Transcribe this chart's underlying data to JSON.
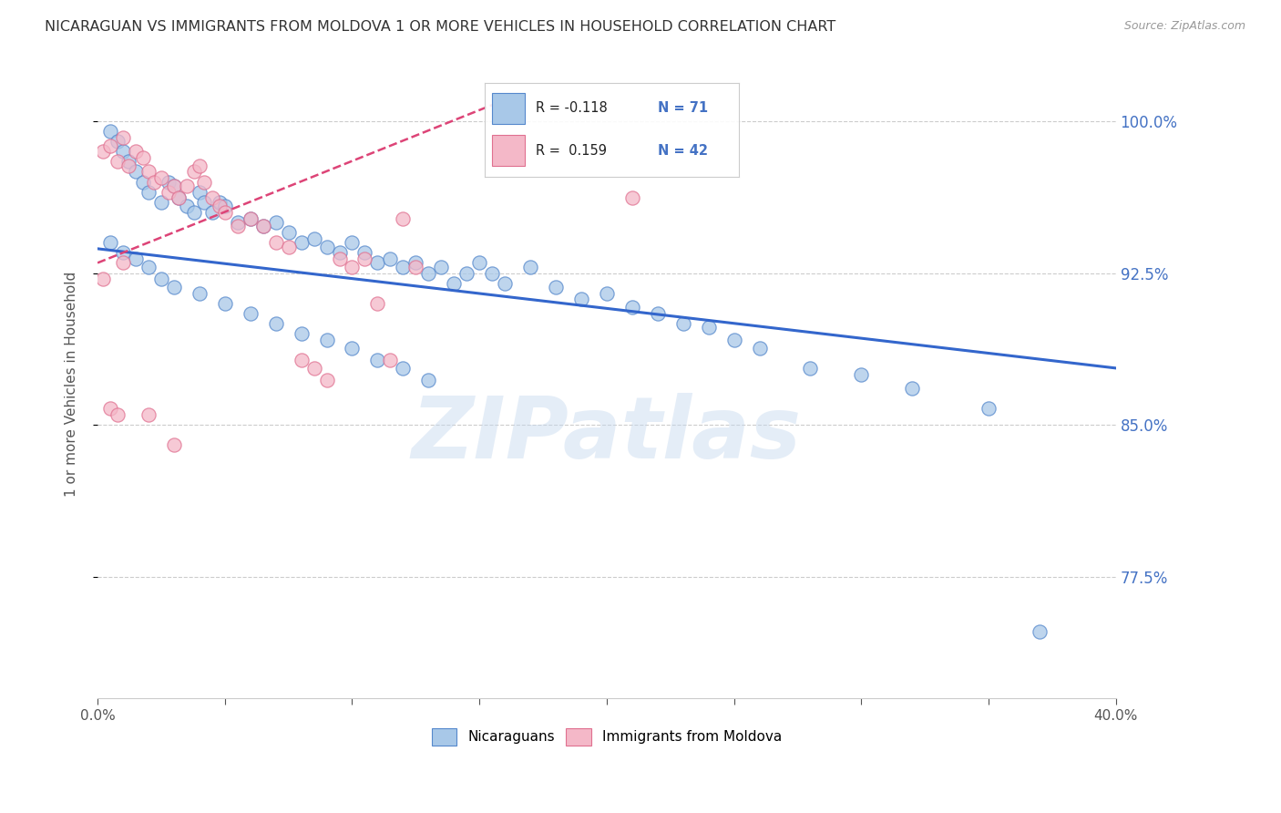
{
  "title": "NICARAGUAN VS IMMIGRANTS FROM MOLDOVA 1 OR MORE VEHICLES IN HOUSEHOLD CORRELATION CHART",
  "source": "Source: ZipAtlas.com",
  "ylabel": "1 or more Vehicles in Household",
  "ytick_labels": [
    "100.0%",
    "92.5%",
    "85.0%",
    "77.5%"
  ],
  "ytick_values": [
    1.0,
    0.925,
    0.85,
    0.775
  ],
  "xlim": [
    0.0,
    0.4
  ],
  "ylim": [
    0.715,
    1.025
  ],
  "blue_color": "#a8c8e8",
  "pink_color": "#f4b8c8",
  "blue_edge_color": "#5588cc",
  "pink_edge_color": "#e07090",
  "blue_line_color": "#3366cc",
  "pink_line_color": "#dd4477",
  "watermark": "ZIPatlas",
  "blue_line_x0": 0.0,
  "blue_line_x1": 0.4,
  "blue_line_y0": 0.937,
  "blue_line_y1": 0.878,
  "pink_line_x0": 0.0,
  "pink_line_x1": 0.155,
  "pink_line_y0": 0.93,
  "pink_line_y1": 1.008,
  "blue_scatter_x": [
    0.005,
    0.008,
    0.01,
    0.012,
    0.015,
    0.018,
    0.02,
    0.025,
    0.028,
    0.03,
    0.032,
    0.035,
    0.038,
    0.04,
    0.042,
    0.045,
    0.048,
    0.05,
    0.055,
    0.06,
    0.065,
    0.07,
    0.075,
    0.08,
    0.085,
    0.09,
    0.095,
    0.1,
    0.105,
    0.11,
    0.115,
    0.12,
    0.125,
    0.13,
    0.135,
    0.14,
    0.145,
    0.15,
    0.155,
    0.16,
    0.17,
    0.18,
    0.19,
    0.2,
    0.21,
    0.22,
    0.23,
    0.24,
    0.25,
    0.26,
    0.28,
    0.3,
    0.32,
    0.35,
    0.005,
    0.01,
    0.015,
    0.02,
    0.025,
    0.03,
    0.04,
    0.05,
    0.06,
    0.07,
    0.08,
    0.09,
    0.1,
    0.11,
    0.12,
    0.13,
    0.37
  ],
  "blue_scatter_y": [
    0.995,
    0.99,
    0.985,
    0.98,
    0.975,
    0.97,
    0.965,
    0.96,
    0.97,
    0.968,
    0.962,
    0.958,
    0.955,
    0.965,
    0.96,
    0.955,
    0.96,
    0.958,
    0.95,
    0.952,
    0.948,
    0.95,
    0.945,
    0.94,
    0.942,
    0.938,
    0.935,
    0.94,
    0.935,
    0.93,
    0.932,
    0.928,
    0.93,
    0.925,
    0.928,
    0.92,
    0.925,
    0.93,
    0.925,
    0.92,
    0.928,
    0.918,
    0.912,
    0.915,
    0.908,
    0.905,
    0.9,
    0.898,
    0.892,
    0.888,
    0.878,
    0.875,
    0.868,
    0.858,
    0.94,
    0.935,
    0.932,
    0.928,
    0.922,
    0.918,
    0.915,
    0.91,
    0.905,
    0.9,
    0.895,
    0.892,
    0.888,
    0.882,
    0.878,
    0.872,
    0.748
  ],
  "pink_scatter_x": [
    0.002,
    0.005,
    0.008,
    0.01,
    0.012,
    0.015,
    0.018,
    0.02,
    0.022,
    0.025,
    0.028,
    0.03,
    0.032,
    0.035,
    0.038,
    0.04,
    0.042,
    0.045,
    0.048,
    0.05,
    0.055,
    0.06,
    0.065,
    0.07,
    0.075,
    0.08,
    0.085,
    0.09,
    0.095,
    0.1,
    0.105,
    0.11,
    0.115,
    0.12,
    0.125,
    0.002,
    0.005,
    0.008,
    0.01,
    0.02,
    0.03,
    0.21
  ],
  "pink_scatter_y": [
    0.985,
    0.988,
    0.98,
    0.992,
    0.978,
    0.985,
    0.982,
    0.975,
    0.97,
    0.972,
    0.965,
    0.968,
    0.962,
    0.968,
    0.975,
    0.978,
    0.97,
    0.962,
    0.958,
    0.955,
    0.948,
    0.952,
    0.948,
    0.94,
    0.938,
    0.882,
    0.878,
    0.872,
    0.932,
    0.928,
    0.932,
    0.91,
    0.882,
    0.952,
    0.928,
    0.922,
    0.858,
    0.855,
    0.93,
    0.855,
    0.84,
    0.962
  ]
}
